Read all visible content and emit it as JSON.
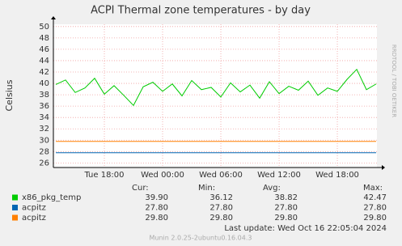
{
  "chart_data": {
    "type": "line",
    "title": "ACPI Thermal zone temperatures - by day",
    "y_label": "Celsius",
    "side_label": "RRDTOOL / TOBI OETIKER",
    "x": [
      13,
      14,
      15,
      16,
      17,
      18,
      19,
      20,
      21,
      22,
      23,
      24,
      25,
      26,
      27,
      28,
      29,
      30,
      31,
      32,
      33,
      34,
      35,
      36,
      37,
      38,
      39,
      40,
      41,
      42,
      43,
      44,
      45,
      46
    ],
    "series": [
      {
        "name": "x86_pkg_temp",
        "color": "#00cc00",
        "values": [
          39.8,
          40.6,
          38.4,
          39.2,
          40.9,
          38.1,
          39.6,
          37.9,
          36.12,
          39.4,
          40.2,
          38.6,
          39.9,
          37.8,
          40.5,
          38.9,
          39.3,
          37.6,
          40.1,
          38.5,
          39.7,
          37.4,
          40.3,
          38.2,
          39.5,
          38.8,
          40.4,
          37.9,
          39.2,
          38.6,
          40.7,
          42.47,
          38.9,
          39.9
        ]
      },
      {
        "name": "acpitz",
        "color": "#0066b3",
        "values": [
          27.8,
          27.8,
          27.8,
          27.8,
          27.8,
          27.8,
          27.8,
          27.8,
          27.8,
          27.8,
          27.8,
          27.8,
          27.8,
          27.8,
          27.8,
          27.8,
          27.8,
          27.8,
          27.8,
          27.8,
          27.8,
          27.8,
          27.8,
          27.8,
          27.8,
          27.8,
          27.8,
          27.8,
          27.8,
          27.8,
          27.8,
          27.8,
          27.8,
          27.8
        ]
      },
      {
        "name": "acpitz",
        "color": "#ff8000",
        "values": [
          29.8,
          29.8,
          29.8,
          29.8,
          29.8,
          29.8,
          29.8,
          29.8,
          29.8,
          29.8,
          29.8,
          29.8,
          29.8,
          29.8,
          29.8,
          29.8,
          29.8,
          29.8,
          29.8,
          29.8,
          29.8,
          29.8,
          29.8,
          29.8,
          29.8,
          29.8,
          29.8,
          29.8,
          29.8,
          29.8,
          29.8,
          29.8,
          29.8,
          29.8
        ]
      }
    ],
    "xlim": [
      12.75,
      46.08
    ],
    "xticks": [
      {
        "value": 18,
        "label": "Tue 18:00"
      },
      {
        "value": 24,
        "label": "Wed 00:00"
      },
      {
        "value": 30,
        "label": "Wed 06:00"
      },
      {
        "value": 36,
        "label": "Wed 12:00"
      },
      {
        "value": 42,
        "label": "Wed 18:00"
      }
    ],
    "ylim": [
      25.2,
      50.4
    ],
    "yticks": [
      26,
      28,
      30,
      32,
      34,
      36,
      38,
      40,
      42,
      44,
      46,
      48,
      50
    ],
    "grid": true,
    "stats": {
      "headers": [
        "Cur:",
        "Min:",
        "Avg:",
        "Max:"
      ],
      "rows": [
        [
          "39.90",
          "36.12",
          "38.82",
          "42.47"
        ],
        [
          "27.80",
          "27.80",
          "27.80",
          "27.80"
        ],
        [
          "29.80",
          "29.80",
          "29.80",
          "29.80"
        ]
      ]
    },
    "last_update": "Last update:  Wed Oct 16 22:05:04 2024",
    "footer": "Munin 2.0.25-2ubuntu0.16.04.3"
  }
}
